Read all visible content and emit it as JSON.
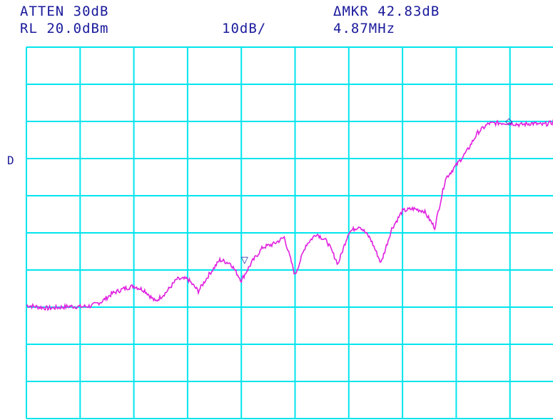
{
  "header": {
    "atten": "ATTEN 30dB",
    "ref_level": "RL 20.0dBm",
    "scale": "10dB/",
    "delta_marker_label": "ΔMKR 42.83dB",
    "delta_marker_freq": "4.87MHz"
  },
  "side_label": "D",
  "colors": {
    "grid": "#00e5ee",
    "trace": "#e020e0",
    "text": "#1a1a9c",
    "marker": "#1a1a9c"
  },
  "chart_data": {
    "type": "line",
    "title": "",
    "xlabel": "",
    "ylabel": "",
    "grid": true,
    "divisions": {
      "x": 10,
      "y": 10
    },
    "ylim": [
      -80,
      20
    ],
    "xlim": [
      0,
      10
    ],
    "series": [
      {
        "values_x": [
          0,
          0.2,
          0.4,
          0.6,
          0.8,
          1.0,
          1.2,
          1.4,
          1.6,
          1.8,
          2.0,
          2.2,
          2.4,
          2.6,
          2.8,
          3.0,
          3.2,
          3.4,
          3.6,
          3.8,
          4.0,
          4.2,
          4.4,
          4.6,
          4.8,
          5.0,
          5.2,
          5.4,
          5.6,
          5.8,
          6.0,
          6.2,
          6.4,
          6.6,
          6.8,
          7.0,
          7.2,
          7.4,
          7.6,
          7.8,
          8.0,
          8.2,
          8.4,
          8.6,
          8.8,
          9.0,
          9.2,
          9.4,
          9.6,
          9.8,
          10.0
        ],
        "values_y": [
          -49.5,
          -49.9,
          -50.3,
          -50.1,
          -49.8,
          -49.9,
          -49.7,
          -48.5,
          -46.3,
          -45.1,
          -44.3,
          -45.5,
          -48.5,
          -46.0,
          -42.5,
          -42.4,
          -45.7,
          -41.2,
          -37.3,
          -38.2,
          -42.8,
          -37.8,
          -33.9,
          -33.0,
          -31.2,
          -41.4,
          -33.3,
          -30.2,
          -32.4,
          -38.4,
          -29.8,
          -28.1,
          -31.5,
          -38.1,
          -28.9,
          -24.1,
          -23.5,
          -24.1,
          -28.6,
          -15.4,
          -11.8,
          -8.0,
          -3.0,
          -0.6,
          -0.4,
          -0.4,
          -0.9,
          -0.5,
          -0.9,
          -0.3,
          -3.9
        ]
      }
    ],
    "markers": [
      {
        "symbol": "▽",
        "x": 4.06,
        "y": -37.3,
        "type": "reference"
      },
      {
        "symbol": "◇",
        "x": 8.98,
        "y": 0.0,
        "type": "delta"
      }
    ]
  }
}
